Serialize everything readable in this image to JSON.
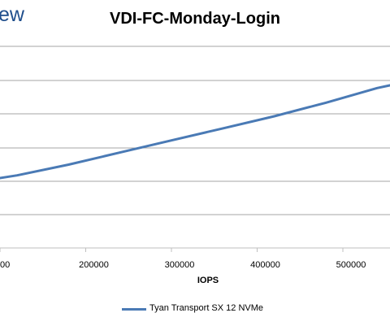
{
  "header": {
    "logo_fragment": "ew"
  },
  "chart_data": {
    "type": "line",
    "title": "VDI-FC-Monday-Login",
    "xlabel": "IOPS",
    "ylabel": "",
    "x_ticks": [
      "00",
      "200000",
      "300000",
      "400000",
      "500000"
    ],
    "series": [
      {
        "name": "Tyan Transport SX 12 NVMe",
        "color": "#4a7ab5",
        "x": [
          80000,
          120000,
          180000,
          240000,
          300000,
          360000,
          420000,
          480000,
          540000,
          570000
        ],
        "y": [
          5.0,
          5.4,
          6.2,
          7.1,
          8.0,
          8.9,
          9.8,
          10.8,
          11.9,
          12.3
        ]
      }
    ],
    "grid": true,
    "legend_position": "bottom"
  }
}
